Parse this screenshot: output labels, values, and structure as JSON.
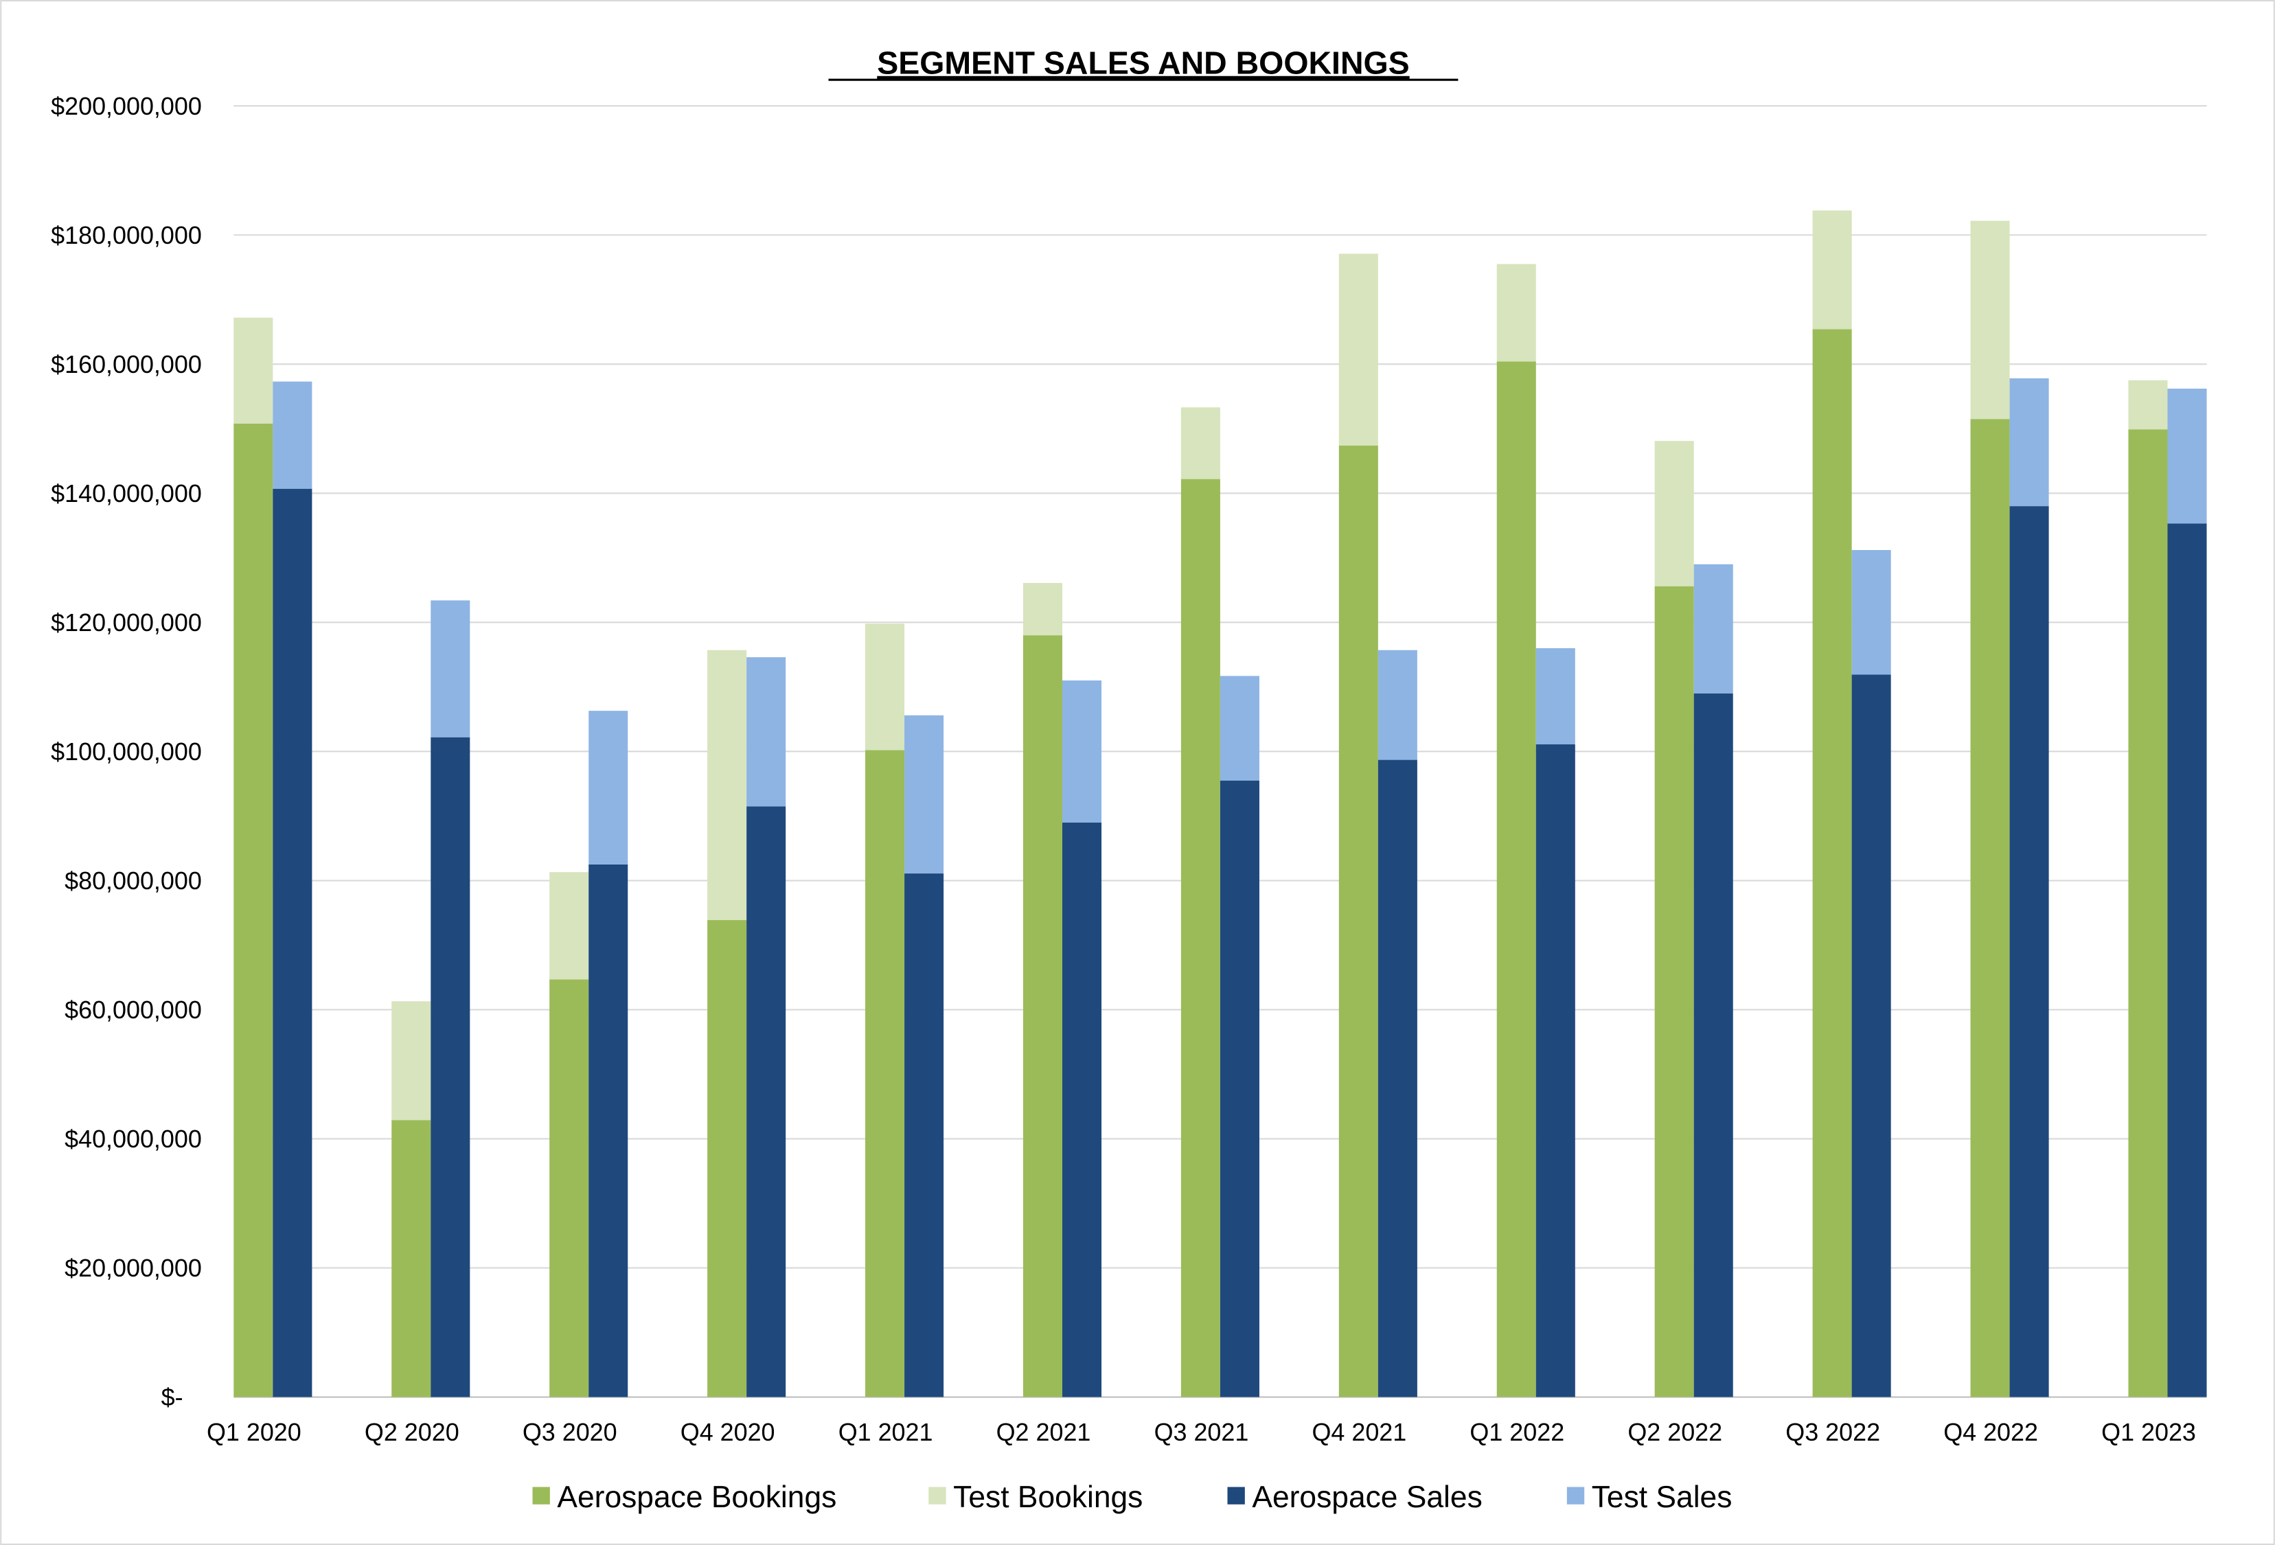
{
  "chart_data": {
    "type": "bar",
    "stacked_groups": true,
    "title": "SEGMENT SALES AND BOOKINGS",
    "xlabel": "",
    "ylabel": "",
    "ylim": [
      0,
      200000000
    ],
    "y_tick_step": 20000000,
    "y_tick_labels": [
      "$-",
      "$20,000,000",
      "$40,000,000",
      "$60,000,000",
      "$80,000,000",
      "$100,000,000",
      "$120,000,000",
      "$140,000,000",
      "$160,000,000",
      "$180,000,000",
      "$200,000,000"
    ],
    "grid": true,
    "legend_position": "bottom",
    "categories": [
      "Q1 2020",
      "Q2 2020",
      "Q3 2020",
      "Q4 2020",
      "Q1 2021",
      "Q2 2021",
      "Q3 2021",
      "Q4 2021",
      "Q1 2022",
      "Q2 2022",
      "Q3 2022",
      "Q4 2022",
      "Q1 2023"
    ],
    "series": [
      {
        "name": "Aerospace Bookings",
        "stack": "bookings",
        "color": "#9BBB59",
        "values": [
          150800000,
          42900000,
          64700000,
          73900000,
          100200000,
          118000000,
          142200000,
          147400000,
          160400000,
          125600000,
          165400000,
          151500000,
          149900000
        ]
      },
      {
        "name": "Test Bookings",
        "stack": "bookings",
        "color": "#D7E4BD",
        "values": [
          16400000,
          18400000,
          16600000,
          41800000,
          19600000,
          8100000,
          11100000,
          29700000,
          15100000,
          22500000,
          18400000,
          30700000,
          7600000
        ]
      },
      {
        "name": "Aerospace Sales",
        "stack": "sales",
        "color": "#1F497D",
        "values": [
          140700000,
          102200000,
          82500000,
          91500000,
          81100000,
          89000000,
          95500000,
          98700000,
          101100000,
          109000000,
          111900000,
          138000000,
          135300000
        ]
      },
      {
        "name": "Test Sales",
        "stack": "sales",
        "color": "#8EB4E3",
        "values": [
          16600000,
          21200000,
          23800000,
          23100000,
          24500000,
          22000000,
          16200000,
          17000000,
          14900000,
          20000000,
          19300000,
          19800000,
          20900000
        ]
      }
    ]
  }
}
